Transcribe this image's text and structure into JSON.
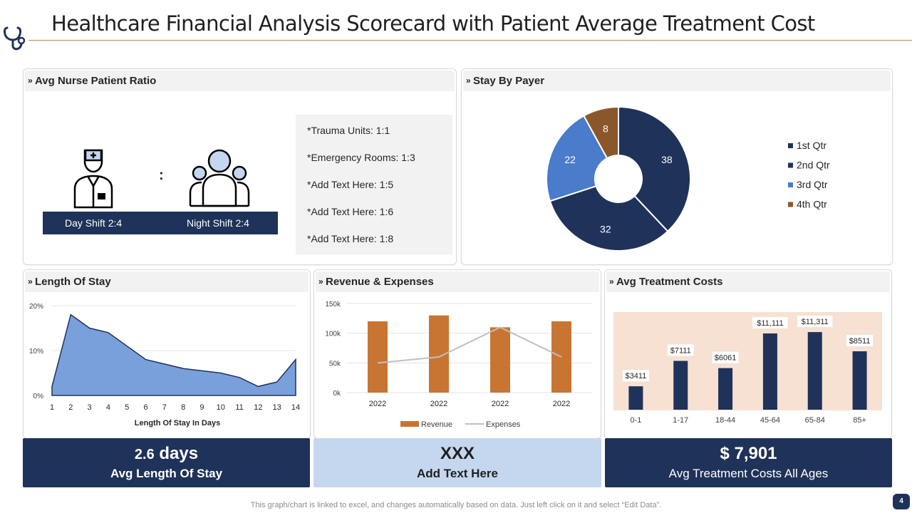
{
  "header": {
    "title": "Healthcare Financial Analysis Scorecard with Patient Average Treatment Cost"
  },
  "nurse_ratio": {
    "title": "Avg Nurse Patient Ratio",
    "colon": ":",
    "day_shift": "Day Shift 2:4",
    "night_shift": "Night Shift 2:4",
    "ratios": [
      "*Trauma Units: 1:1",
      "*Emergency Rooms: 1:3",
      "*Add Text Here: 1:5",
      "*Add Text Here: 1:6",
      "*Add Text Here: 1:8"
    ]
  },
  "stay_by_payer": {
    "title": "Stay By Payer"
  },
  "length_of_stay": {
    "title": "Length Of Stay"
  },
  "revenue_expenses": {
    "title": "Revenue & Expenses"
  },
  "avg_treatment": {
    "title": "Avg  Treatment Costs"
  },
  "kpis": {
    "stay": {
      "value_num": "2.6",
      "value_unit": "days",
      "label": "Avg Length Of Stay"
    },
    "text": {
      "value": "XXX",
      "label": "Add Text Here"
    },
    "cost": {
      "value": "$ 7,901",
      "label": "Avg Treatment Costs All Ages"
    }
  },
  "footer": {
    "note": "This graph/chart is linked to excel,  and changes automatically based on data. Just left click on it and select “Edit Data”.",
    "page": "4"
  },
  "colors": {
    "navy": "#1f3259",
    "blue": "#4a7ccb",
    "brown": "#8b572a",
    "orange": "#c87533",
    "area": "#7aa0dc",
    "peach": "#f6e1d2"
  },
  "chart_data": [
    {
      "type": "pie",
      "title": "Stay By Payer",
      "categories": [
        "1st Qtr",
        "2nd Qtr",
        "3rd Qtr",
        "4th Qtr"
      ],
      "values": [
        38,
        32,
        22,
        8
      ],
      "colors": [
        "#1f3259",
        "#1f3259",
        "#4a7ccb",
        "#8b572a"
      ],
      "legend": "right"
    },
    {
      "type": "area",
      "title": "Length Of Stay",
      "x": [
        1,
        2,
        3,
        4,
        5,
        6,
        7,
        8,
        9,
        10,
        11,
        12,
        13,
        14
      ],
      "y": [
        2,
        18,
        15,
        14,
        11,
        8,
        7,
        6,
        5.5,
        5,
        4,
        2,
        3,
        8
      ],
      "xlabel": "Length Of Stay In Days",
      "ylabel": "",
      "ylim": [
        0,
        20
      ],
      "yticks": [
        "0%",
        "10%",
        "20%"
      ],
      "grid": true
    },
    {
      "type": "bar",
      "title": "Revenue & Expenses",
      "categories": [
        "2022",
        "2022",
        "2022",
        "2022"
      ],
      "series": [
        {
          "name": "Revenue",
          "type": "bar",
          "values": [
            120,
            130,
            110,
            120
          ]
        },
        {
          "name": "Expenses",
          "type": "line",
          "values": [
            50,
            60,
            110,
            60
          ]
        }
      ],
      "yticks": [
        "0k",
        "50k",
        "100k",
        "150k"
      ],
      "ylim": [
        0,
        150
      ],
      "legend": "bottom",
      "grid": true
    },
    {
      "type": "bar",
      "title": "Avg  Treatment Costs",
      "categories": [
        "0-1",
        "1-17",
        "18-44",
        "45-64",
        "65-84",
        "85+"
      ],
      "values": [
        3411,
        7111,
        6061,
        11111,
        11311,
        8511
      ],
      "labels": [
        "$3411",
        "$7111",
        "$6061",
        "$11,111",
        "$11,311",
        "$8511"
      ],
      "ylim": [
        0,
        13500
      ]
    }
  ]
}
